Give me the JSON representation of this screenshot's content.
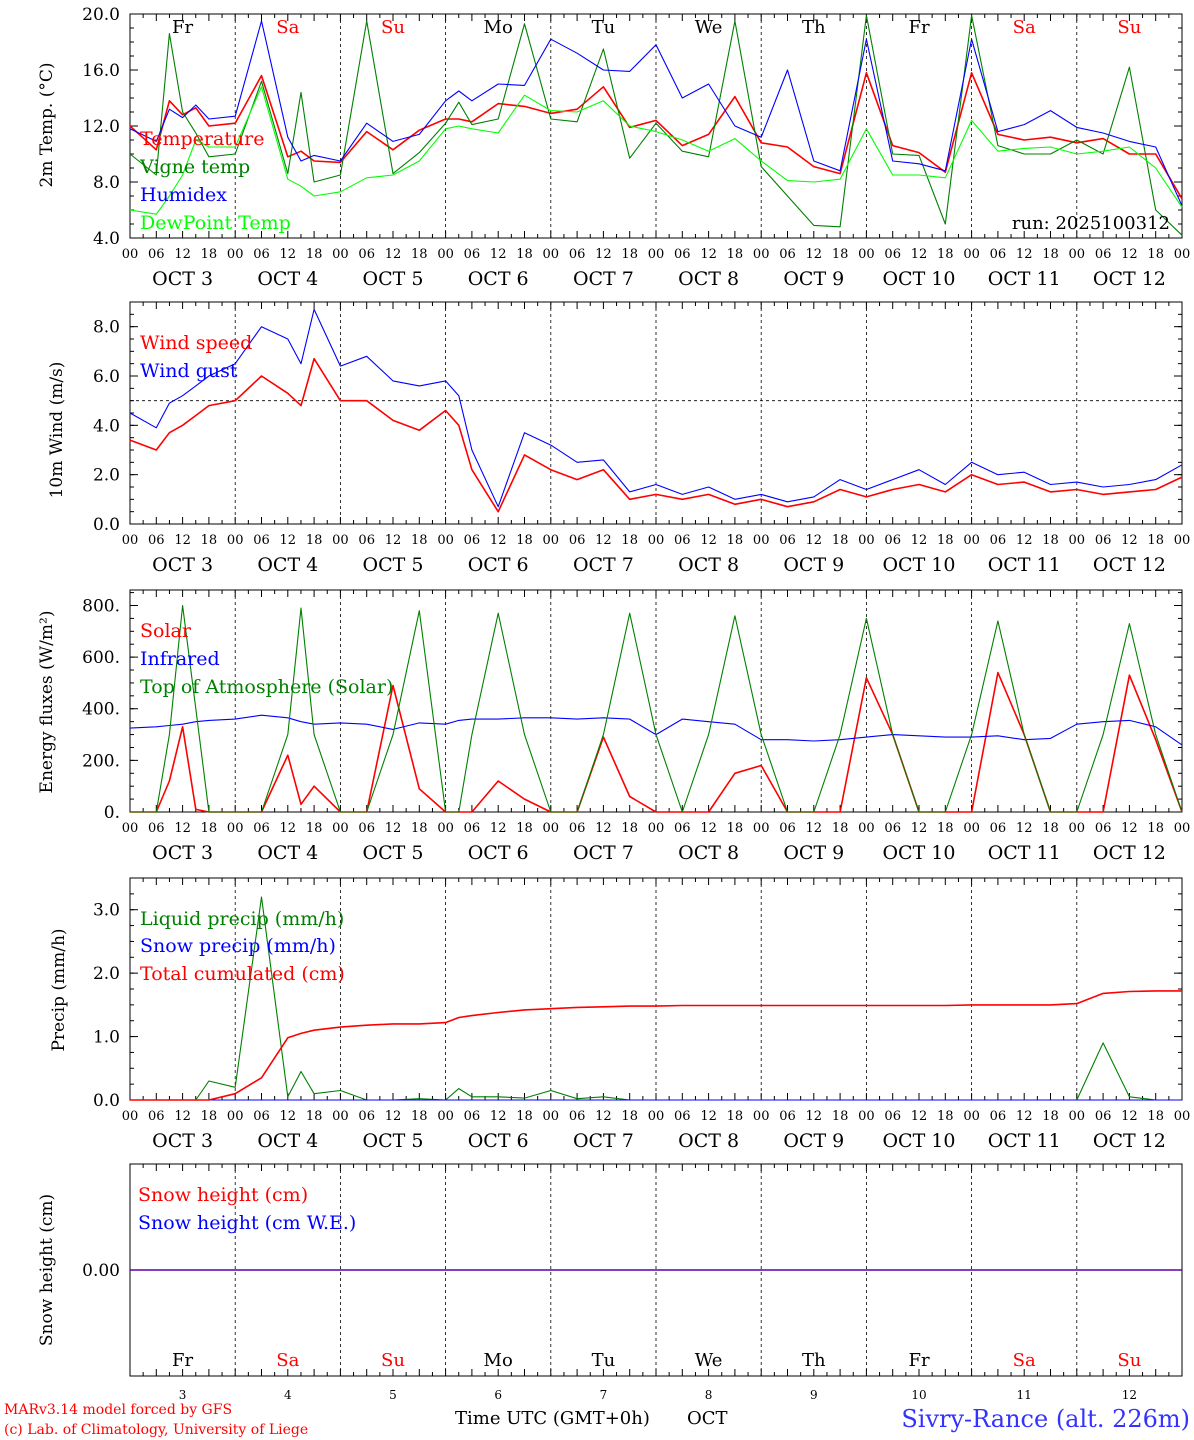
{
  "colors": {
    "temperature": "#ff0000",
    "vigne": "#008000",
    "humidex": "#0000ff",
    "dewpoint": "#00ff00",
    "weekend": "#ff0000",
    "weekday": "#000000",
    "location": "#3333ff"
  },
  "days": [
    {
      "abbr": "Fr",
      "date": "OCT  3",
      "num": "3",
      "weekend": false
    },
    {
      "abbr": "Sa",
      "date": "OCT  4",
      "num": "4",
      "weekend": true
    },
    {
      "abbr": "Su",
      "date": "OCT  5",
      "num": "5",
      "weekend": true
    },
    {
      "abbr": "Mo",
      "date": "OCT  6",
      "num": "6",
      "weekend": false
    },
    {
      "abbr": "Tu",
      "date": "OCT  7",
      "num": "7",
      "weekend": false
    },
    {
      "abbr": "We",
      "date": "OCT  8",
      "num": "8",
      "weekend": false
    },
    {
      "abbr": "Th",
      "date": "OCT  9",
      "num": "9",
      "weekend": false
    },
    {
      "abbr": "Fr",
      "date": "OCT 10",
      "num": "10",
      "weekend": false
    },
    {
      "abbr": "Sa",
      "date": "OCT 11",
      "num": "11",
      "weekend": true
    },
    {
      "abbr": "Su",
      "date": "OCT 12",
      "num": "12",
      "weekend": true
    }
  ],
  "hour_ticks": [
    "00",
    "06",
    "12",
    "18"
  ],
  "run_label": "run: 2025100312",
  "footer": {
    "credit_line1": "MARv3.14 model forced by GFS",
    "credit_line2": "(c) Lab. of Climatology, University of Liege",
    "time_axis_label": "Time UTC (GMT+0h)",
    "month": "OCT",
    "location": "Sivry-Rance (alt. 226m)"
  },
  "chart_data": [
    {
      "type": "line",
      "id": "temp",
      "ylabel": "2m Temp. (°C)",
      "ylim": [
        4,
        20
      ],
      "yticks": [
        "4.0",
        "8.0",
        "12.0",
        "16.0",
        "20.0"
      ],
      "x_hours": [
        0,
        6,
        9,
        12,
        15,
        18,
        24,
        30,
        36,
        39,
        42,
        48,
        54,
        60,
        66,
        72,
        75,
        78,
        84,
        90,
        96,
        102,
        108,
        114,
        120,
        126,
        132,
        138,
        144,
        150,
        156,
        162,
        168,
        174,
        180,
        186,
        192,
        198,
        204,
        210,
        216,
        222,
        228,
        234,
        240
      ],
      "series": [
        {
          "name": "Temperature",
          "color": "#ff0000",
          "values": [
            12.0,
            10.3,
            13.8,
            12.8,
            13.3,
            12.0,
            12.2,
            15.6,
            9.8,
            10.2,
            9.5,
            9.4,
            11.6,
            10.3,
            11.7,
            12.5,
            12.5,
            12.3,
            13.6,
            13.4,
            12.9,
            13.2,
            14.8,
            11.9,
            12.4,
            10.6,
            11.4,
            14.1,
            10.8,
            10.5,
            9.1,
            8.6,
            15.8,
            10.6,
            10.1,
            8.7,
            15.8,
            11.4,
            11.0,
            11.2,
            10.8,
            11.1,
            10.0,
            10.0,
            6.8
          ]
        },
        {
          "name": "Vigne temp",
          "color": "#008000",
          "values": [
            10.0,
            8.5,
            18.6,
            13.0,
            11.5,
            9.8,
            10.0,
            15.2,
            8.6,
            14.4,
            8.0,
            8.5,
            19.5,
            8.6,
            10.1,
            12.2,
            13.7,
            12.1,
            12.5,
            19.3,
            12.5,
            12.3,
            17.5,
            9.7,
            12.2,
            10.2,
            9.8,
            19.5,
            9.1,
            7.0,
            4.9,
            4.8,
            19.9,
            10.0,
            9.9,
            5.0,
            19.9,
            10.6,
            10.0,
            10.0,
            11.0,
            10.0,
            16.2,
            6.0,
            4.2
          ]
        },
        {
          "name": "Humidex",
          "color": "#0000ff",
          "values": [
            11.8,
            10.9,
            13.2,
            12.6,
            13.5,
            12.5,
            12.7,
            19.5,
            11.2,
            9.5,
            9.9,
            9.5,
            12.2,
            10.9,
            11.4,
            13.8,
            14.5,
            13.8,
            15.0,
            14.9,
            18.2,
            17.2,
            16.0,
            15.9,
            17.8,
            14.0,
            15.0,
            12.0,
            11.2,
            16.0,
            9.5,
            8.8,
            18.2,
            9.5,
            9.3,
            8.8,
            18.2,
            11.6,
            12.1,
            13.1,
            11.9,
            11.5,
            10.9,
            10.5,
            6.3
          ]
        },
        {
          "name": "DewPoint Temp",
          "color": "#00ff00",
          "values": [
            6.0,
            5.7,
            7.0,
            8.5,
            11.0,
            10.5,
            10.5,
            14.8,
            8.2,
            7.7,
            7.0,
            7.3,
            8.3,
            8.5,
            9.5,
            11.8,
            12.0,
            11.8,
            11.5,
            14.2,
            13.1,
            13.0,
            13.8,
            12.0,
            11.6,
            11.0,
            10.2,
            11.1,
            9.5,
            8.1,
            8.0,
            8.2,
            11.8,
            8.5,
            8.5,
            8.3,
            12.4,
            10.2,
            10.4,
            10.5,
            10.0,
            10.2,
            10.5,
            9.0,
            6.2
          ]
        }
      ]
    },
    {
      "type": "line",
      "id": "wind",
      "ylabel": "10m Wind (m/s)",
      "ylim": [
        0,
        9
      ],
      "yticks": [
        "0.0",
        "2.0",
        "4.0",
        "6.0",
        "8.0"
      ],
      "reference_line": 5,
      "x_hours": [
        0,
        6,
        9,
        12,
        15,
        18,
        24,
        30,
        36,
        39,
        42,
        48,
        54,
        60,
        66,
        72,
        75,
        78,
        84,
        90,
        96,
        102,
        108,
        114,
        120,
        126,
        132,
        138,
        144,
        150,
        156,
        162,
        168,
        174,
        180,
        186,
        192,
        198,
        204,
        210,
        216,
        222,
        228,
        234,
        240
      ],
      "series": [
        {
          "name": "Wind speed",
          "color": "#ff0000",
          "values": [
            3.4,
            3.0,
            3.7,
            4.0,
            4.4,
            4.8,
            5.0,
            6.0,
            5.3,
            4.8,
            6.7,
            5.0,
            5.0,
            4.2,
            3.8,
            4.6,
            4.0,
            2.2,
            0.5,
            2.8,
            2.2,
            1.8,
            2.2,
            1.0,
            1.2,
            1.0,
            1.2,
            0.8,
            1.0,
            0.7,
            0.9,
            1.4,
            1.1,
            1.4,
            1.6,
            1.3,
            2.0,
            1.6,
            1.7,
            1.3,
            1.4,
            1.2,
            1.3,
            1.4,
            1.9
          ]
        },
        {
          "name": "Wind gust",
          "color": "#0000ff",
          "values": [
            4.5,
            3.9,
            4.9,
            5.2,
            5.6,
            6.0,
            6.5,
            8.0,
            7.5,
            6.5,
            8.7,
            6.4,
            6.8,
            5.8,
            5.6,
            5.8,
            5.2,
            3.0,
            0.7,
            3.7,
            3.2,
            2.5,
            2.6,
            1.3,
            1.6,
            1.2,
            1.5,
            1.0,
            1.2,
            0.9,
            1.1,
            1.8,
            1.4,
            1.8,
            2.2,
            1.6,
            2.5,
            2.0,
            2.1,
            1.6,
            1.7,
            1.5,
            1.6,
            1.8,
            2.4
          ]
        }
      ]
    },
    {
      "type": "line",
      "id": "energy",
      "ylabel": "Energy fluxes (W/m²)",
      "ylim": [
        0,
        860
      ],
      "yticks": [
        "0.",
        "200.",
        "400.",
        "600.",
        "800."
      ],
      "x_hours": [
        0,
        6,
        9,
        12,
        15,
        18,
        24,
        30,
        36,
        39,
        42,
        48,
        54,
        60,
        66,
        72,
        75,
        78,
        84,
        90,
        96,
        102,
        108,
        114,
        120,
        126,
        132,
        138,
        144,
        150,
        156,
        162,
        168,
        174,
        180,
        186,
        192,
        198,
        204,
        210,
        216,
        222,
        228,
        234,
        240
      ],
      "series": [
        {
          "name": "Solar",
          "color": "#ff0000",
          "values": [
            0,
            0,
            120,
            330,
            10,
            0,
            0,
            0,
            220,
            30,
            100,
            0,
            0,
            490,
            90,
            0,
            0,
            0,
            120,
            50,
            0,
            0,
            290,
            60,
            0,
            0,
            0,
            150,
            180,
            0,
            0,
            0,
            520,
            300,
            0,
            0,
            0,
            540,
            300,
            0,
            0,
            0,
            530,
            280,
            0
          ]
        },
        {
          "name": "Infrared",
          "color": "#0000ff",
          "values": [
            325,
            330,
            335,
            340,
            350,
            355,
            360,
            375,
            365,
            350,
            340,
            345,
            340,
            320,
            345,
            340,
            355,
            360,
            360,
            365,
            365,
            360,
            365,
            360,
            300,
            360,
            350,
            340,
            280,
            280,
            275,
            280,
            290,
            300,
            295,
            290,
            290,
            295,
            280,
            285,
            340,
            350,
            355,
            330,
            260
          ]
        },
        {
          "name": "Top of Atmosphere (Solar)",
          "color": "#008000",
          "values": [
            0,
            0,
            300,
            800,
            400,
            0,
            0,
            0,
            300,
            790,
            300,
            0,
            0,
            300,
            780,
            0,
            0,
            300,
            770,
            300,
            0,
            0,
            300,
            770,
            300,
            0,
            300,
            760,
            300,
            0,
            0,
            300,
            750,
            300,
            0,
            0,
            300,
            740,
            300,
            0,
            0,
            300,
            730,
            300,
            0
          ]
        }
      ]
    },
    {
      "type": "line",
      "id": "precip",
      "ylabel": "Precip (mm/h)",
      "ylim": [
        0,
        3.5
      ],
      "yticks": [
        "0.0",
        "1.0",
        "2.0",
        "3.0"
      ],
      "x_hours": [
        0,
        6,
        9,
        12,
        15,
        18,
        24,
        30,
        36,
        39,
        42,
        48,
        54,
        60,
        66,
        72,
        75,
        78,
        84,
        90,
        96,
        102,
        108,
        114,
        120,
        126,
        132,
        138,
        144,
        150,
        156,
        162,
        168,
        174,
        180,
        186,
        192,
        198,
        204,
        210,
        216,
        222,
        228,
        234,
        240
      ],
      "series": [
        {
          "name": "Liquid precip (mm/h)",
          "color": "#008000",
          "values": [
            0,
            0,
            0,
            0,
            0,
            0.3,
            0.2,
            3.2,
            0.05,
            0.45,
            0.1,
            0.15,
            0,
            0,
            0.02,
            0,
            0.18,
            0.05,
            0.05,
            0.03,
            0.15,
            0.02,
            0.05,
            0,
            0,
            0,
            0,
            0,
            0,
            0,
            0,
            0,
            0,
            0,
            0,
            0,
            0,
            0,
            0,
            0,
            0,
            0.9,
            0.05,
            0,
            0
          ]
        },
        {
          "name": "Snow precip (mm/h)",
          "color": "#0000ff",
          "values": [
            0,
            0,
            0,
            0,
            0,
            0,
            0,
            0,
            0,
            0,
            0,
            0,
            0,
            0,
            0,
            0,
            0,
            0,
            0,
            0,
            0,
            0,
            0,
            0,
            0,
            0,
            0,
            0,
            0,
            0,
            0,
            0,
            0,
            0,
            0,
            0,
            0,
            0,
            0,
            0,
            0,
            0,
            0,
            0,
            0
          ]
        },
        {
          "name": "Total cumulated (cm)",
          "color": "#ff0000",
          "values": [
            0,
            0,
            0,
            0,
            0,
            0,
            0.1,
            0.35,
            0.98,
            1.05,
            1.1,
            1.15,
            1.18,
            1.2,
            1.2,
            1.22,
            1.3,
            1.33,
            1.38,
            1.42,
            1.44,
            1.46,
            1.47,
            1.48,
            1.48,
            1.49,
            1.49,
            1.49,
            1.49,
            1.49,
            1.49,
            1.49,
            1.49,
            1.49,
            1.49,
            1.49,
            1.5,
            1.5,
            1.5,
            1.5,
            1.52,
            1.68,
            1.71,
            1.72,
            1.72
          ]
        }
      ]
    },
    {
      "type": "line",
      "id": "snow",
      "ylabel": "Snow height (cm)",
      "ylim": [
        -1,
        1
      ],
      "yticks": [
        "0.00"
      ],
      "x_hours": [
        0,
        240
      ],
      "series": [
        {
          "name": "Snow height (cm)",
          "color": "#ff0000",
          "values": [
            0,
            0
          ]
        },
        {
          "name": "Snow height (cm W.E.)",
          "color": "#0000ff",
          "values": [
            0,
            0
          ]
        }
      ]
    }
  ]
}
